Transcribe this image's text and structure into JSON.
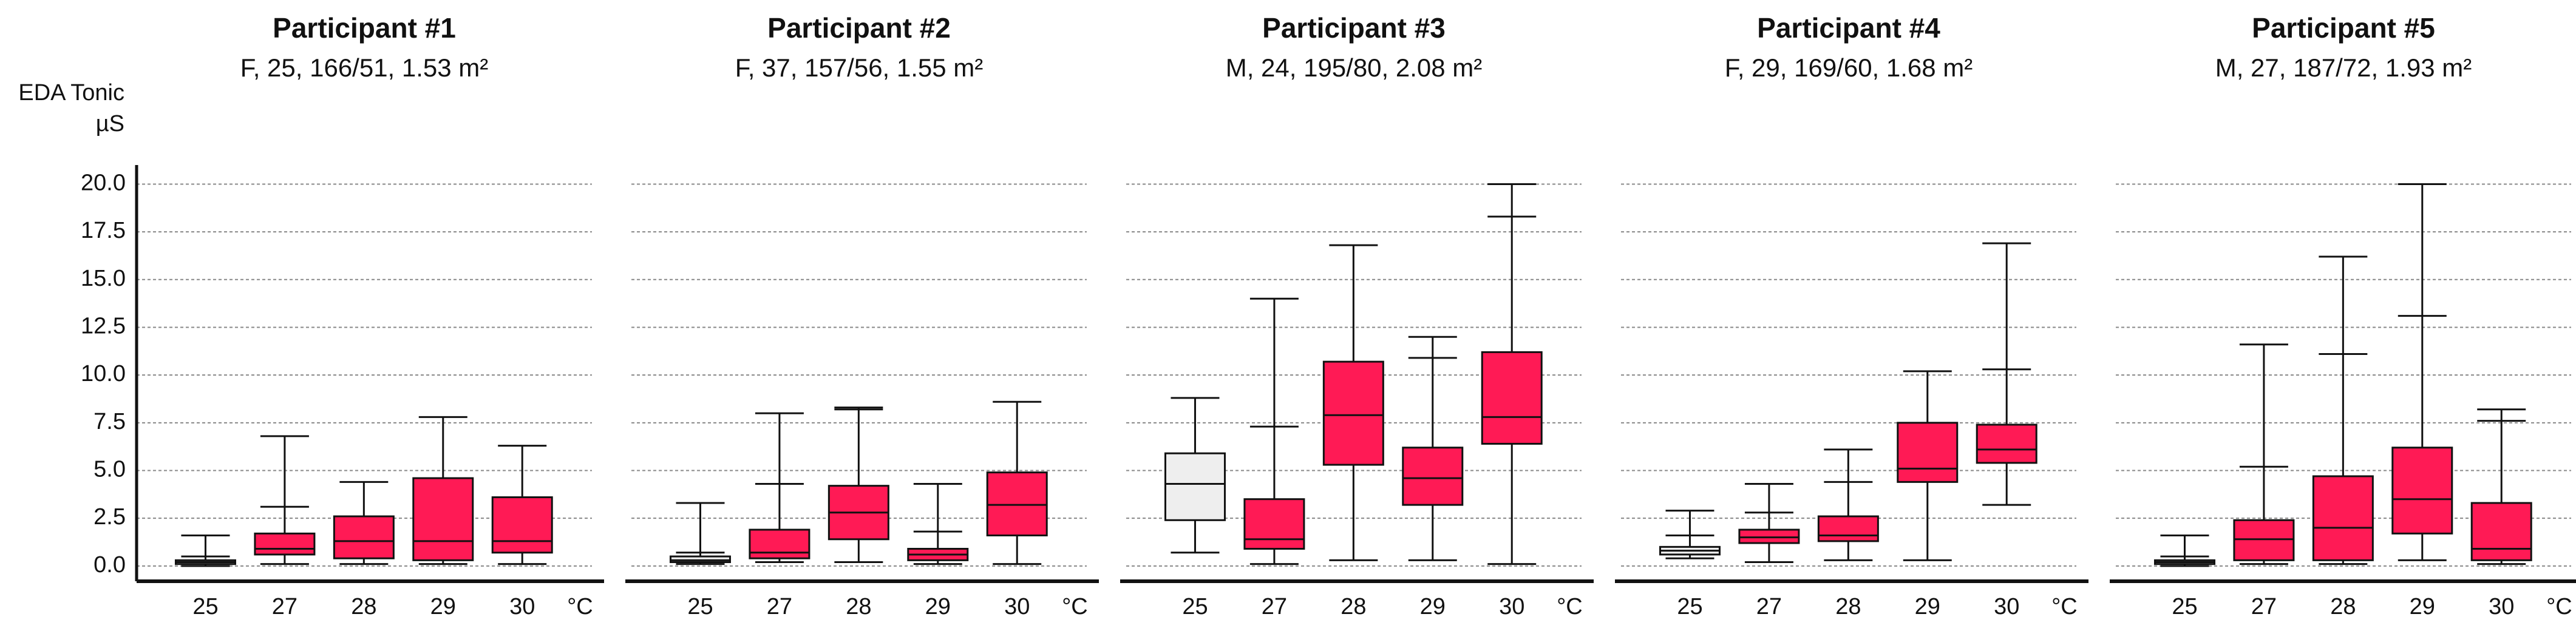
{
  "chart_data": {
    "type": "box",
    "ylabel": "EDA Tonic",
    "yunit": "µS",
    "xunit": "°C",
    "ylim": [
      -0.8,
      21
    ],
    "yticks": [
      {
        "value": 0,
        "label": "0.0"
      },
      2.5,
      {
        "value": 5,
        "label": "5.0"
      },
      7.5,
      {
        "value": 10,
        "label": "10.0"
      },
      12.5,
      {
        "value": 15,
        "label": "15.0"
      },
      17.5,
      {
        "value": 20,
        "label": "20.0"
      }
    ],
    "grid": true,
    "colors": [
      "#eeeeee",
      "#ff1a55",
      "#ff1a55",
      "#ff1a55",
      "#ff1a55"
    ],
    "categories": [
      "25",
      "27",
      "28",
      "29",
      "30"
    ],
    "panels": [
      {
        "title": "Participant #1",
        "subtitle": "F, 25, 166/51, 1.53 m²",
        "boxes": [
          {
            "min": 0.0,
            "q1": 0.1,
            "median": 0.2,
            "q3": 0.3,
            "max": 1.6,
            "mark": 0.5
          },
          {
            "min": 0.1,
            "q1": 0.6,
            "median": 0.9,
            "q3": 1.7,
            "max": 6.8,
            "mark": 3.1
          },
          {
            "min": 0.1,
            "q1": 0.4,
            "median": 1.3,
            "q3": 2.6,
            "max": 4.4,
            "mark": null
          },
          {
            "min": 0.1,
            "q1": 0.3,
            "median": 1.3,
            "q3": 4.6,
            "max": 7.8,
            "mark": null
          },
          {
            "min": 0.1,
            "q1": 0.7,
            "median": 1.3,
            "q3": 3.6,
            "max": 6.3,
            "mark": null
          }
        ]
      },
      {
        "title": "Participant #2",
        "subtitle": "F, 37, 157/56, 1.55 m²",
        "boxes": [
          {
            "min": 0.1,
            "q1": 0.2,
            "median": 0.3,
            "q3": 0.5,
            "max": 3.3,
            "mark": 0.7
          },
          {
            "min": 0.2,
            "q1": 0.4,
            "median": 0.7,
            "q3": 1.9,
            "max": 8.0,
            "mark": 4.3
          },
          {
            "min": 0.2,
            "q1": 1.4,
            "median": 2.8,
            "q3": 4.2,
            "max": 8.3,
            "mark": 8.2
          },
          {
            "min": 0.1,
            "q1": 0.3,
            "median": 0.6,
            "q3": 0.9,
            "max": 4.3,
            "mark": 1.8
          },
          {
            "min": 0.1,
            "q1": 1.6,
            "median": 3.2,
            "q3": 4.9,
            "max": 8.6,
            "mark": null
          }
        ]
      },
      {
        "title": "Participant #3",
        "subtitle": "M, 24, 195/80, 2.08 m²",
        "boxes": [
          {
            "min": 0.7,
            "q1": 2.4,
            "median": 4.3,
            "q3": 5.9,
            "max": 8.8,
            "mark": null
          },
          {
            "min": 0.1,
            "q1": 0.9,
            "median": 1.4,
            "q3": 3.5,
            "max": 14.0,
            "mark": 7.3
          },
          {
            "min": 0.3,
            "q1": 5.3,
            "median": 7.9,
            "q3": 10.7,
            "max": 16.8,
            "mark": null
          },
          {
            "min": 0.3,
            "q1": 3.2,
            "median": 4.6,
            "q3": 6.2,
            "max": 12.0,
            "mark": 10.9
          },
          {
            "min": 0.1,
            "q1": 6.4,
            "median": 7.8,
            "q3": 11.2,
            "max": 20.0,
            "mark": 18.3
          }
        ]
      },
      {
        "title": "Participant #4",
        "subtitle": "F, 29, 169/60, 1.68 m²",
        "boxes": [
          {
            "min": 0.4,
            "q1": 0.6,
            "median": 0.8,
            "q3": 1.0,
            "max": 2.9,
            "mark": 1.6
          },
          {
            "min": 0.2,
            "q1": 1.2,
            "median": 1.5,
            "q3": 1.9,
            "max": 4.3,
            "mark": 2.8
          },
          {
            "min": 0.3,
            "q1": 1.3,
            "median": 1.6,
            "q3": 2.6,
            "max": 6.1,
            "mark": 4.4
          },
          {
            "min": 0.3,
            "q1": 4.4,
            "median": 5.1,
            "q3": 7.5,
            "max": 10.2,
            "mark": null
          },
          {
            "min": 3.2,
            "q1": 5.4,
            "median": 6.1,
            "q3": 7.4,
            "max": 16.9,
            "mark": 10.3
          }
        ]
      },
      {
        "title": "Participant #5",
        "subtitle": "M, 27, 187/72, 1.93 m²",
        "boxes": [
          {
            "min": 0.0,
            "q1": 0.1,
            "median": 0.2,
            "q3": 0.3,
            "max": 1.6,
            "mark": 0.5
          },
          {
            "min": 0.1,
            "q1": 0.3,
            "median": 1.4,
            "q3": 2.4,
            "max": 11.6,
            "mark": 5.2
          },
          {
            "min": 0.1,
            "q1": 0.3,
            "median": 2.0,
            "q3": 4.7,
            "max": 16.2,
            "mark": 11.1
          },
          {
            "min": 0.3,
            "q1": 1.7,
            "median": 3.5,
            "q3": 6.2,
            "max": 20.0,
            "mark": 13.1
          },
          {
            "min": 0.1,
            "q1": 0.3,
            "median": 0.9,
            "q3": 3.3,
            "max": 8.2,
            "mark": 7.6
          }
        ]
      }
    ]
  }
}
